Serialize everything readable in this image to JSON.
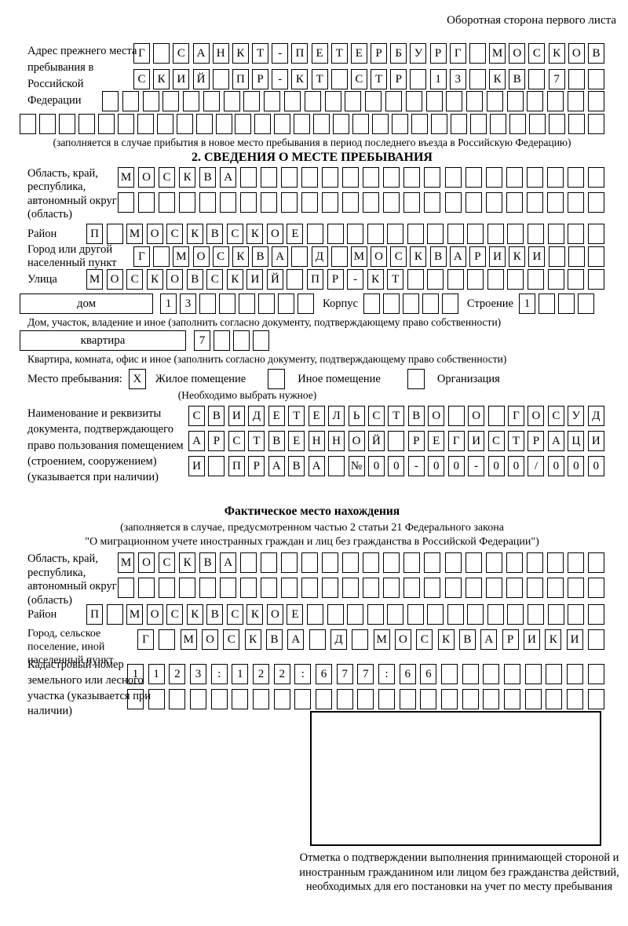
{
  "page": {
    "corner_note": "Оборотная сторона первого листа"
  },
  "prev_address": {
    "label": "Адрес прежнего места пребывания в Российской Федерации",
    "row1": [
      "Г",
      "",
      "С",
      "А",
      "Н",
      "К",
      "Т",
      "-",
      "П",
      "Е",
      "Т",
      "Е",
      "Р",
      "Б",
      "У",
      "Р",
      "Г",
      "",
      "М",
      "О",
      "С",
      "К",
      "О",
      "В"
    ],
    "row2": [
      "С",
      "К",
      "И",
      "Й",
      "",
      "П",
      "Р",
      "-",
      "К",
      "Т",
      "",
      "С",
      "Т",
      "Р",
      "",
      "1",
      "3",
      "",
      "К",
      "В",
      "",
      "7",
      "",
      ""
    ],
    "row3": 25,
    "row4": 30,
    "note": "(заполняется в случае прибытия в новое место пребывания в период последнего въезда в Российскую Федерацию)"
  },
  "section2": {
    "title": "2. СВЕДЕНИЯ О МЕСТЕ ПРЕБЫВАНИЯ",
    "oblast": {
      "label": "Область, край, республика, автономный округ (область)",
      "row1": [
        "М",
        "О",
        "С",
        "К",
        "В",
        "А",
        "",
        "",
        "",
        "",
        "",
        "",
        "",
        "",
        "",
        "",
        "",
        "",
        "",
        "",
        "",
        "",
        "",
        ""
      ],
      "row2": 24
    },
    "rayon": {
      "label": "Район",
      "row": [
        "П",
        "",
        "М",
        "О",
        "С",
        "К",
        "В",
        "С",
        "К",
        "О",
        "Е",
        "",
        "",
        "",
        "",
        "",
        "",
        "",
        "",
        "",
        "",
        "",
        "",
        "",
        "",
        ""
      ]
    },
    "gorod": {
      "label": "Город или другой населенный пункт",
      "row": [
        "Г",
        "",
        "М",
        "О",
        "С",
        "К",
        "В",
        "А",
        "",
        "Д",
        "",
        "М",
        "О",
        "С",
        "К",
        "В",
        "А",
        "Р",
        "И",
        "К",
        "И",
        "",
        "",
        ""
      ]
    },
    "ulitsa": {
      "label": "Улица",
      "row": [
        "М",
        "О",
        "С",
        "К",
        "О",
        "В",
        "С",
        "К",
        "И",
        "Й",
        "",
        "П",
        "Р",
        "-",
        "К",
        "Т",
        "",
        "",
        "",
        "",
        "",
        "",
        "",
        "",
        "",
        ""
      ]
    },
    "dom": {
      "field_label": "дом",
      "cells": [
        "1",
        "3",
        "",
        "",
        "",
        "",
        "",
        ""
      ],
      "korpus_label": "Корпус",
      "korpus_cells": 5,
      "stroenie_label": "Строение",
      "stroenie_cells": [
        "1",
        "",
        "",
        ""
      ]
    },
    "dom_note": "Дом, участок, владение и иное (заполнить согласно документу, подтверждающему право собственности)",
    "kvartira": {
      "field_label": "квартира",
      "cells": [
        "7",
        "",
        "",
        ""
      ]
    },
    "kvartira_note": "Квартира, комната, офис и иное (заполнить согласно документу, подтверждающему право собственности)",
    "mesto": {
      "label": "Место пребывания:",
      "options": [
        {
          "mark": "X",
          "label": "Жилое помещение"
        },
        {
          "mark": "",
          "label": "Иное помещение"
        },
        {
          "mark": "",
          "label": "Организация"
        }
      ],
      "note": "(Необходимо выбрать нужное)"
    },
    "document": {
      "label": "Наименование и реквизиты документа, подтверждающего право пользования помещением (строением, сооружением) (указывается при наличии)",
      "row1": [
        "С",
        "В",
        "И",
        "Д",
        "Е",
        "Т",
        "Е",
        "Л",
        "Ь",
        "С",
        "Т",
        "В",
        "О",
        "",
        "О",
        "",
        "Г",
        "О",
        "С",
        "У",
        "Д"
      ],
      "row2": [
        "А",
        "Р",
        "С",
        "Т",
        "В",
        "Е",
        "Н",
        "Н",
        "О",
        "Й",
        "",
        "Р",
        "Е",
        "Г",
        "И",
        "С",
        "Т",
        "Р",
        "А",
        "Ц",
        "И"
      ],
      "row3": [
        "И",
        "",
        "П",
        "Р",
        "А",
        "В",
        "А",
        "",
        "№",
        "0",
        "0",
        "-",
        "0",
        "0",
        "-",
        "0",
        "0",
        "/",
        "0",
        "0",
        "0"
      ]
    }
  },
  "factual": {
    "title": "Фактическое место нахождения",
    "note_line1": "(заполняется в случае, предусмотренном частью 2 статьи 21 Федерального закона",
    "note_line2": "\"О миграционном учете иностранных граждан и лиц без гражданства в Российской Федерации\")",
    "oblast": {
      "label": "Область, край, республика, автономный округ (область)",
      "row1": [
        "М",
        "О",
        "С",
        "К",
        "В",
        "А",
        "",
        "",
        "",
        "",
        "",
        "",
        "",
        "",
        "",
        "",
        "",
        "",
        "",
        "",
        "",
        "",
        "",
        ""
      ],
      "row2": 24
    },
    "rayon": {
      "label": "Район",
      "row": [
        "П",
        "",
        "М",
        "О",
        "С",
        "К",
        "В",
        "С",
        "К",
        "О",
        "Е",
        "",
        "",
        "",
        "",
        "",
        "",
        "",
        "",
        "",
        "",
        "",
        "",
        "",
        "",
        ""
      ]
    },
    "gorod": {
      "label": "Город, сельское поселение, иной населенный пункт",
      "row": [
        "Г",
        "",
        "М",
        "О",
        "С",
        "К",
        "В",
        "А",
        "",
        "Д",
        "",
        "М",
        "О",
        "С",
        "К",
        "В",
        "А",
        "Р",
        "И",
        "К",
        "И",
        ""
      ]
    },
    "kadastr": {
      "label": "Кадастровый номер земельного или лесного участка (указывается при наличии)",
      "row1": [
        "1",
        "1",
        "2",
        "3",
        ":",
        "1",
        "2",
        "2",
        ":",
        "6",
        "7",
        "7",
        ":",
        "6",
        "6",
        "",
        "",
        "",
        "",
        "",
        "",
        "",
        ""
      ],
      "row2": 23
    },
    "stamp_caption": "Отметка о подтверждении выполнения принимающей стороной и иностранным гражданином или лицом без гражданства действий, необходимых для его постановки на учет по месту пребывания"
  }
}
